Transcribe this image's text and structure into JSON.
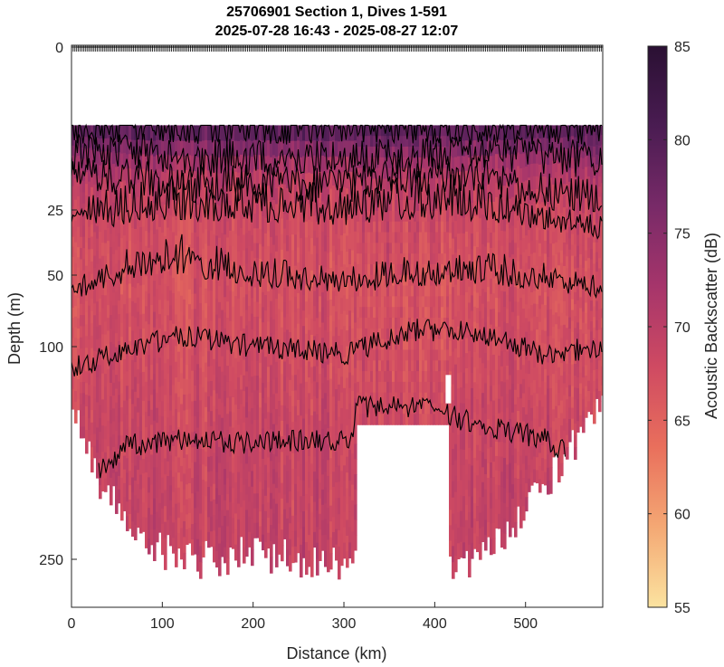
{
  "chart_data": {
    "type": "heatmap",
    "title_line1": "25706901 Section 1, Dives 1-591",
    "title_line2": "2025-07-28 16:43 - 2025-08-27 12:07",
    "xlabel": "Distance (km)",
    "ylabel": "Depth (m)",
    "xlim": [
      0,
      585
    ],
    "x_ticks": [
      "0",
      "100",
      "200",
      "300",
      "400",
      "500"
    ],
    "x_tick_values": [
      0,
      100,
      200,
      300,
      400,
      500
    ],
    "y_ticks": [
      "0",
      "25",
      "50",
      "100",
      "250"
    ],
    "y_tick_values": [
      0,
      25,
      50,
      100,
      250
    ],
    "y_axis": "reversed, nonlinear (square-root-like) depth scale",
    "data_top_depth_m": 12,
    "colorbar": {
      "label": "Acoustic Backscatter (dB)",
      "range": [
        55,
        85
      ],
      "ticks": [
        "55",
        "60",
        "65",
        "70",
        "75",
        "80",
        "85"
      ],
      "tick_values": [
        55,
        60,
        65,
        70,
        75,
        80,
        85
      ],
      "colors": [
        "#fbe3a0",
        "#f4a874",
        "#e96f5c",
        "#cf4a62",
        "#a6356b",
        "#782a68",
        "#4a1c52",
        "#2a1033"
      ]
    },
    "gap_region": {
      "x_start": 312,
      "x_end": 415,
      "depth_start": 155
    },
    "gap_shallow_region": {
      "x_start": 412,
      "x_end": 418,
      "depth_start": 120,
      "depth_end": 140
    },
    "deep_extent_profile": {
      "x": [
        0,
        30,
        60,
        100,
        150,
        200,
        250,
        300,
        312,
        415,
        450,
        500,
        540,
        585
      ],
      "max_depth_m": [
        140,
        195,
        220,
        245,
        250,
        245,
        250,
        250,
        250,
        255,
        245,
        215,
        180,
        135
      ]
    },
    "isolines_depth_m": [
      {
        "mean": [
          12,
          12,
          12,
          12,
          12,
          12,
          12,
          12,
          12
        ],
        "x": [
          0,
          60,
          120,
          200,
          300,
          380,
          450,
          520,
          585
        ]
      },
      {
        "mean": [
          16,
          16,
          17,
          17,
          17,
          17,
          16,
          17,
          17
        ],
        "x": [
          0,
          60,
          120,
          200,
          300,
          380,
          450,
          520,
          585
        ]
      },
      {
        "mean": [
          20,
          20,
          21,
          21,
          21,
          20,
          20,
          22,
          23
        ],
        "x": [
          0,
          60,
          120,
          200,
          300,
          380,
          450,
          520,
          585
        ]
      },
      {
        "mean": [
          28,
          26,
          24,
          25,
          26,
          24,
          24,
          28,
          32
        ],
        "x": [
          0,
          60,
          120,
          200,
          300,
          380,
          450,
          520,
          585
        ]
      },
      {
        "mean": [
          60,
          48,
          42,
          50,
          55,
          50,
          48,
          53,
          58
        ],
        "x": [
          0,
          60,
          120,
          200,
          300,
          380,
          450,
          520,
          585
        ]
      },
      {
        "mean": [
          115,
          102,
          92,
          100,
          105,
          88,
          90,
          105,
          100
        ],
        "x": [
          0,
          60,
          120,
          200,
          300,
          380,
          450,
          520,
          585
        ]
      },
      {
        "mean": [
          190,
          170,
          165,
          168,
          165,
          142,
          155,
          165,
          175
        ],
        "x": [
          30,
          60,
          120,
          200,
          300,
          380,
          450,
          520,
          545
        ]
      }
    ],
    "dive_markers_at_surface": "dense row of tick marks at depth 0 across full distance range"
  }
}
